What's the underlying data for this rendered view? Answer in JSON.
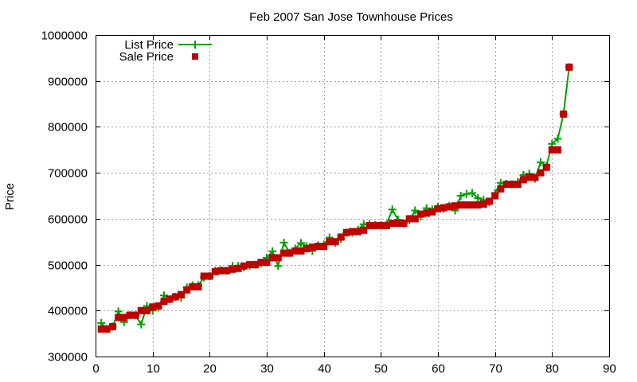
{
  "chart_data": {
    "type": "line",
    "title": "Feb 2007 San Jose Townhouse Prices",
    "xlabel": "",
    "ylabel": "Price",
    "xlim": [
      0,
      90
    ],
    "ylim": [
      300000,
      1000000
    ],
    "xticks": [
      0,
      10,
      20,
      30,
      40,
      50,
      60,
      70,
      80,
      90
    ],
    "yticks": [
      300000,
      400000,
      500000,
      600000,
      700000,
      800000,
      900000,
      1000000
    ],
    "grid": true,
    "legend_position": "top-left",
    "x": [
      1,
      2,
      3,
      4,
      5,
      6,
      7,
      8,
      9,
      10,
      11,
      12,
      13,
      14,
      15,
      16,
      17,
      18,
      19,
      20,
      21,
      22,
      23,
      24,
      25,
      26,
      27,
      28,
      29,
      30,
      31,
      32,
      33,
      34,
      35,
      36,
      37,
      38,
      39,
      40,
      41,
      42,
      43,
      44,
      45,
      46,
      47,
      48,
      49,
      50,
      51,
      52,
      53,
      54,
      55,
      56,
      57,
      58,
      59,
      60,
      61,
      62,
      63,
      64,
      65,
      66,
      67,
      68,
      69,
      70,
      71,
      72,
      73,
      74,
      75,
      76,
      77,
      78,
      79,
      80,
      81,
      82,
      83
    ],
    "series": [
      {
        "name": "List Price",
        "color": "#00a000",
        "style": "line-plus",
        "values": [
          373000,
          360000,
          365000,
          398000,
          375000,
          390000,
          390000,
          370000,
          410000,
          400000,
          408000,
          433000,
          425000,
          430000,
          428000,
          450000,
          455000,
          455000,
          472000,
          475000,
          487000,
          488000,
          487000,
          497000,
          497000,
          494000,
          498000,
          500000,
          503000,
          515000,
          529000,
          497000,
          548000,
          526000,
          535000,
          547000,
          540000,
          530000,
          542000,
          544000,
          559000,
          548000,
          556000,
          570000,
          570000,
          576000,
          588000,
          588000,
          586000,
          586000,
          588000,
          620000,
          598000,
          590000,
          597000,
          618000,
          605000,
          623000,
          620000,
          626000,
          622000,
          628000,
          618000,
          650000,
          654000,
          656000,
          645000,
          641000,
          636000,
          656000,
          678000,
          676000,
          675000,
          680000,
          695000,
          698000,
          687000,
          723000,
          715000,
          763000,
          774000,
          828000,
          930000
        ]
      },
      {
        "name": "Sale Price",
        "color": "#c00000",
        "style": "square",
        "values": [
          360000,
          360000,
          365000,
          385000,
          385000,
          390000,
          390000,
          400000,
          400000,
          408000,
          410000,
          420000,
          425000,
          430000,
          435000,
          445000,
          452000,
          452000,
          475000,
          475000,
          485000,
          487000,
          487000,
          490000,
          492000,
          497000,
          500000,
          500000,
          505000,
          505000,
          515000,
          515000,
          525000,
          525000,
          530000,
          530000,
          535000,
          538000,
          540000,
          540000,
          550000,
          550000,
          560000,
          570000,
          572000,
          572000,
          575000,
          585000,
          585000,
          585000,
          585000,
          590000,
          590000,
          590000,
          600000,
          600000,
          610000,
          612000,
          615000,
          622000,
          624000,
          626000,
          628000,
          630000,
          630000,
          630000,
          630000,
          632000,
          638000,
          650000,
          665000,
          675000,
          675000,
          675000,
          685000,
          690000,
          690000,
          700000,
          712000,
          750000,
          750000,
          828000,
          930000
        ]
      }
    ]
  }
}
